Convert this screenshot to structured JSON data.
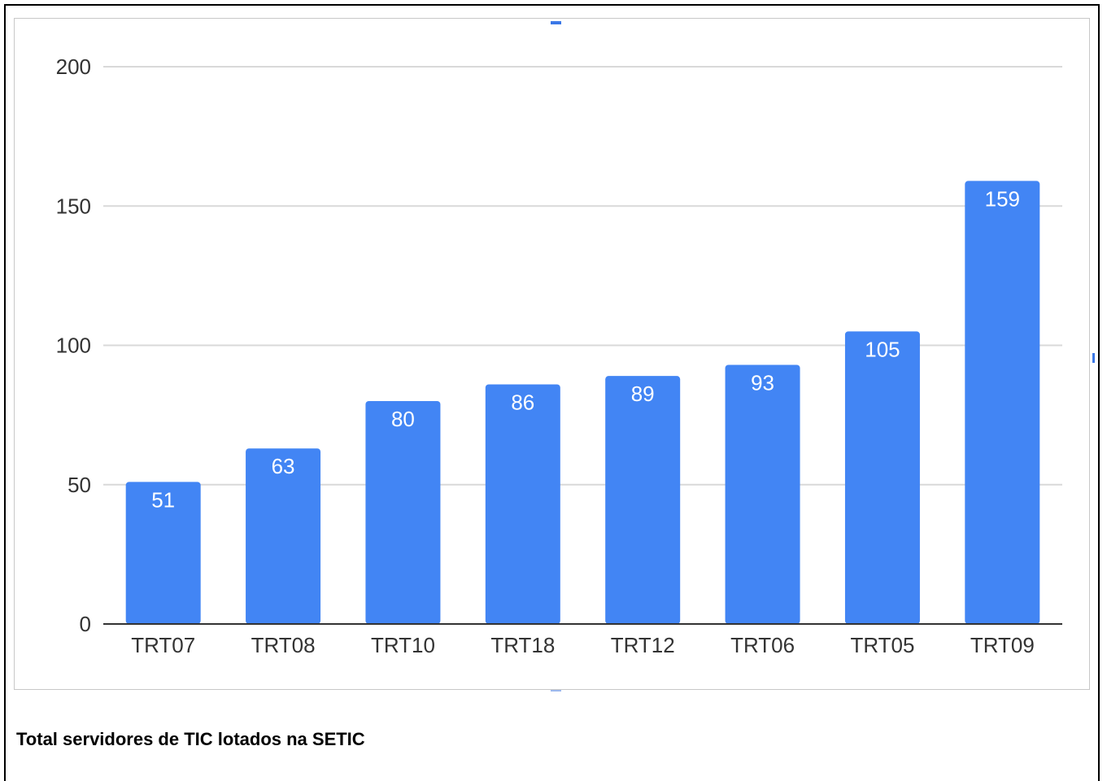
{
  "caption": "Total servidores de TIC lotados na SETIC",
  "colors": {
    "bar": "#4285f4",
    "grid": "#d9d9d9",
    "axis": "#333333",
    "label": "#ffffff"
  },
  "chart_data": {
    "type": "bar",
    "categories": [
      "TRT07",
      "TRT08",
      "TRT10",
      "TRT18",
      "TRT12",
      "TRT06",
      "TRT05",
      "TRT09"
    ],
    "values": [
      51,
      63,
      80,
      86,
      89,
      93,
      105,
      159
    ],
    "title": "",
    "xlabel": "",
    "ylabel": "",
    "ylim": [
      0,
      200
    ],
    "yticks": [
      0,
      50,
      100,
      150,
      200
    ],
    "grid": true,
    "data_labels": true
  }
}
